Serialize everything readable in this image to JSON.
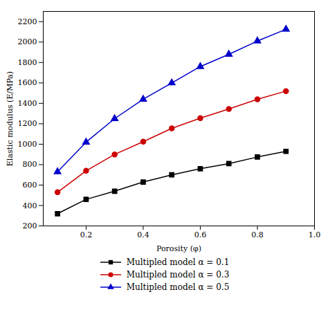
{
  "chart_data": {
    "type": "line",
    "x": [
      0.1,
      0.2,
      0.3,
      0.4,
      0.5,
      0.6,
      0.7,
      0.8,
      0.9
    ],
    "series": [
      {
        "name": "Multipled model α = 0.1",
        "color": "#000000",
        "marker": "square",
        "values": [
          320,
          460,
          540,
          630,
          700,
          760,
          810,
          875,
          930
        ]
      },
      {
        "name": "Multipled model α = 0.3",
        "color": "#cc0000",
        "marker": "circle",
        "values": [
          530,
          740,
          900,
          1025,
          1155,
          1255,
          1345,
          1440,
          1520
        ]
      },
      {
        "name": "Multipled model α = 0.5",
        "color": "#0000cc",
        "marker": "triangle",
        "values": [
          730,
          1020,
          1250,
          1440,
          1600,
          1760,
          1880,
          2010,
          2125
        ]
      }
    ],
    "xlabel": "Porosity (φ)",
    "ylabel": "Elastic modulus (E/MPa)",
    "xlim": [
      0.05,
      1.0
    ],
    "ylim": [
      200,
      2300
    ],
    "xticks": [
      0.2,
      0.4,
      0.6,
      0.8,
      {
        "value": 1,
        "label": "1.0"
      }
    ],
    "yticks": [
      200,
      400,
      600,
      800,
      1000,
      1200,
      1400,
      1600,
      1800,
      2000,
      2200
    ],
    "grid": false,
    "legend": "bottom"
  }
}
